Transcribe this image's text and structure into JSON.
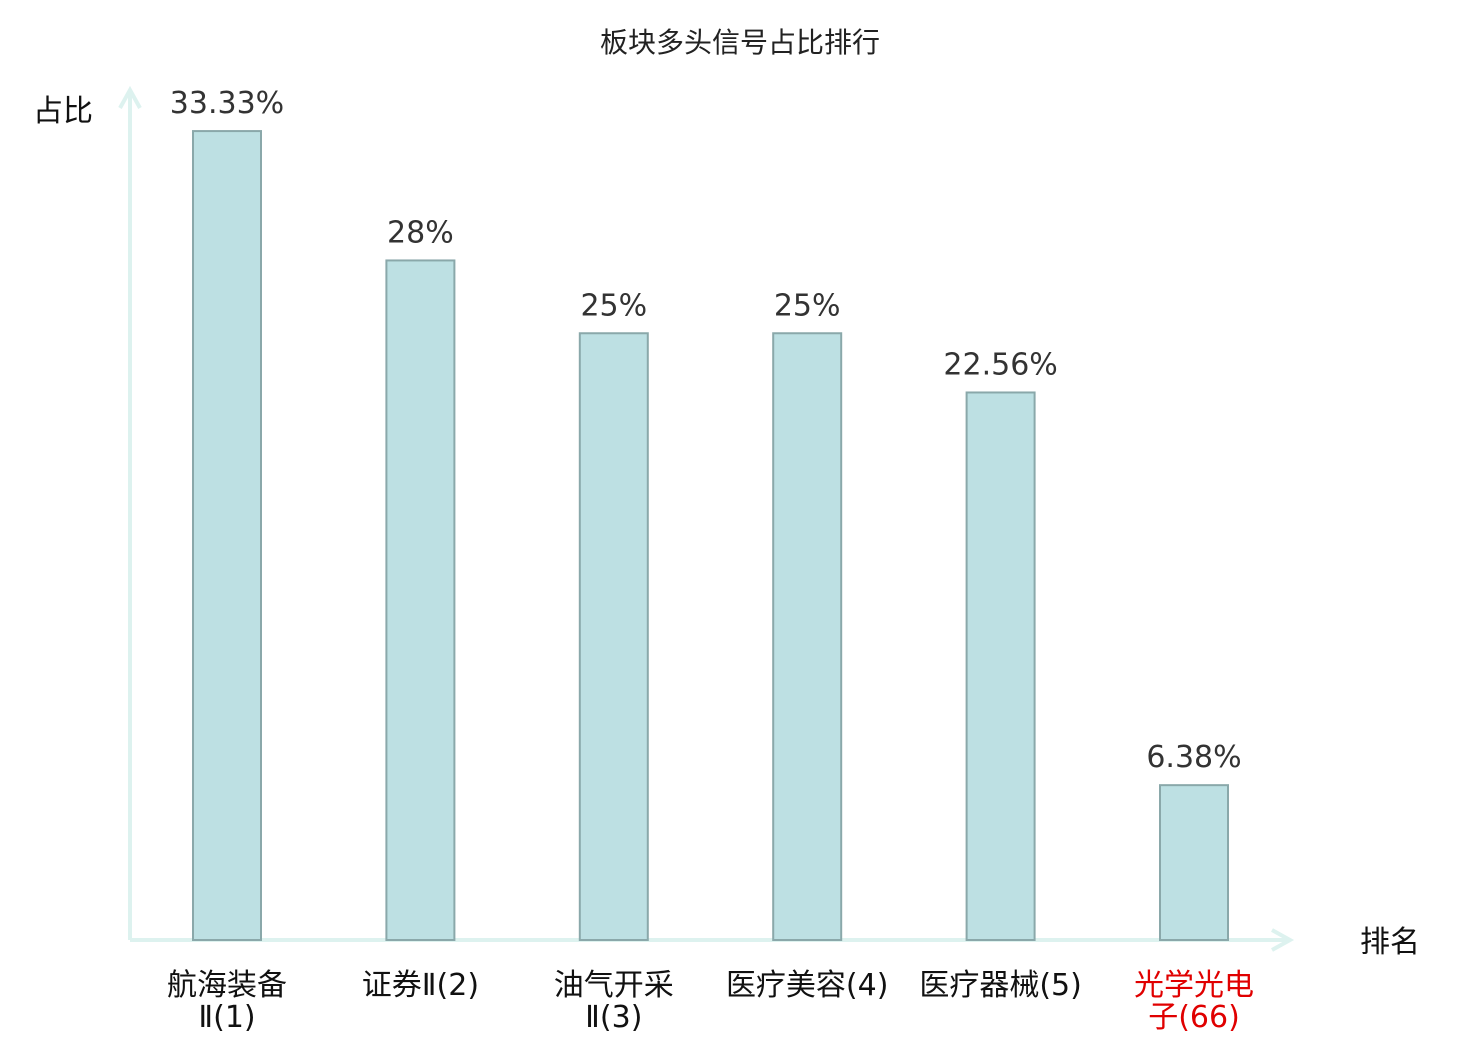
{
  "chart_data": {
    "type": "bar",
    "title": "板块多头信号占比排行",
    "ylabel": "占比",
    "xlabel": "排名",
    "ylim": [
      0,
      35
    ],
    "grid": false,
    "categories": [
      {
        "lines": [
          "航海装备",
          "Ⅱ(1)"
        ],
        "highlight": false
      },
      {
        "lines": [
          "证券Ⅱ(2)"
        ],
        "highlight": false
      },
      {
        "lines": [
          "油气开采",
          "Ⅱ(3)"
        ],
        "highlight": false
      },
      {
        "lines": [
          "医疗美容(4)"
        ],
        "highlight": false
      },
      {
        "lines": [
          "医疗器械(5)"
        ],
        "highlight": false
      },
      {
        "lines": [
          "光学光电",
          "子(66)"
        ],
        "highlight": true
      }
    ],
    "values": [
      33.33,
      28,
      25,
      25,
      22.56,
      6.38
    ],
    "value_labels": [
      "33.33%",
      "28%",
      "25%",
      "25%",
      "22.56%",
      "6.38%"
    ]
  },
  "colors": {
    "bar_fill": "#bde0e3",
    "bar_stroke": "#8aa8aa",
    "axis": "#ddf2ef",
    "highlight": "#e00000"
  }
}
